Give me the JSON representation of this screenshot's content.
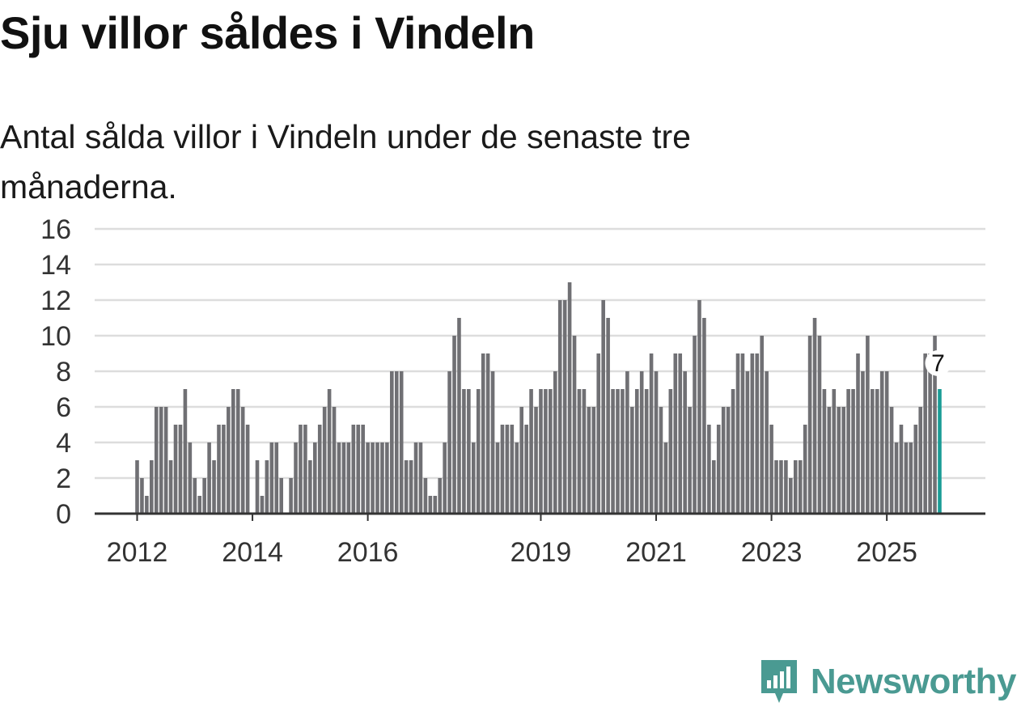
{
  "header": {
    "title": "Sju villor såldes i Vindeln",
    "subtitle": "Antal sålda villor i Vindeln under de senaste tre månaderna."
  },
  "brand": {
    "name": "Newsworthy",
    "icon": "newsworthy-logo-icon",
    "color": "#4a9a92"
  },
  "colors": {
    "bar": "#707074",
    "highlight": "#1a9c96",
    "grid": "#dddddd",
    "axis": "#333333"
  },
  "chart_data": {
    "type": "bar",
    "title": "Sju villor såldes i Vindeln",
    "subtitle": "Antal sålda villor i Vindeln under de senaste tre månaderna.",
    "xlabel": "",
    "ylabel": "",
    "ylim": [
      0,
      16
    ],
    "yticks": [
      0,
      2,
      4,
      6,
      8,
      10,
      12,
      14,
      16
    ],
    "grid": true,
    "x_start_year": 2012,
    "x_tick_labels": [
      "2012",
      "2014",
      "2016",
      "2019",
      "2021",
      "2023",
      "2025"
    ],
    "x_tick_index": [
      0,
      24,
      48,
      84,
      108,
      132,
      156
    ],
    "values": [
      3,
      2,
      1,
      3,
      6,
      6,
      6,
      3,
      5,
      5,
      7,
      4,
      2,
      1,
      2,
      4,
      3,
      5,
      5,
      6,
      7,
      7,
      6,
      5,
      0,
      3,
      1,
      3,
      4,
      4,
      2,
      0,
      2,
      4,
      5,
      5,
      3,
      4,
      5,
      6,
      7,
      6,
      4,
      4,
      4,
      5,
      5,
      5,
      4,
      4,
      4,
      4,
      4,
      8,
      8,
      8,
      3,
      3,
      4,
      4,
      2,
      1,
      1,
      2,
      4,
      8,
      10,
      11,
      7,
      7,
      4,
      7,
      9,
      9,
      8,
      4,
      5,
      5,
      5,
      4,
      6,
      5,
      7,
      6,
      7,
      7,
      7,
      8,
      12,
      12,
      13,
      10,
      7,
      7,
      6,
      6,
      9,
      12,
      11,
      7,
      7,
      7,
      8,
      6,
      7,
      8,
      7,
      9,
      8,
      6,
      4,
      7,
      9,
      9,
      8,
      6,
      10,
      12,
      11,
      5,
      3,
      5,
      6,
      6,
      7,
      9,
      9,
      8,
      9,
      9,
      10,
      8,
      5,
      3,
      3,
      3,
      2,
      3,
      3,
      5,
      10,
      11,
      10,
      7,
      6,
      7,
      6,
      6,
      7,
      7,
      9,
      8,
      10,
      7,
      7,
      8,
      8,
      6,
      4,
      5,
      4,
      4,
      5,
      6,
      9,
      9,
      10,
      7
    ],
    "highlight_index": 167,
    "highlight_label": "7"
  }
}
